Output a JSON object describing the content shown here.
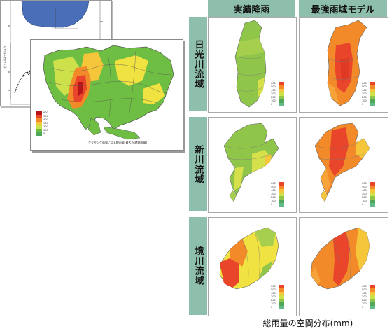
{
  "columns": [
    "実績降雨",
    "最強雨域モデル"
  ],
  "rows": [
    "日光川流域",
    "新川流域",
    "境川流域"
  ],
  "caption": "総雨量の空間分布(mm)",
  "legend_small": [
    "600",
    "500",
    "400",
    "300",
    "200",
    "100",
    "0"
  ],
  "inset_legend": [
    "600",
    "500",
    "400",
    "300",
    "200",
    "100",
    "0"
  ],
  "inset_note": "クリギング雨量による総雨量(最大24時間雨量)",
  "back_axis_label": "ハイエトグラフ (t)"
}
